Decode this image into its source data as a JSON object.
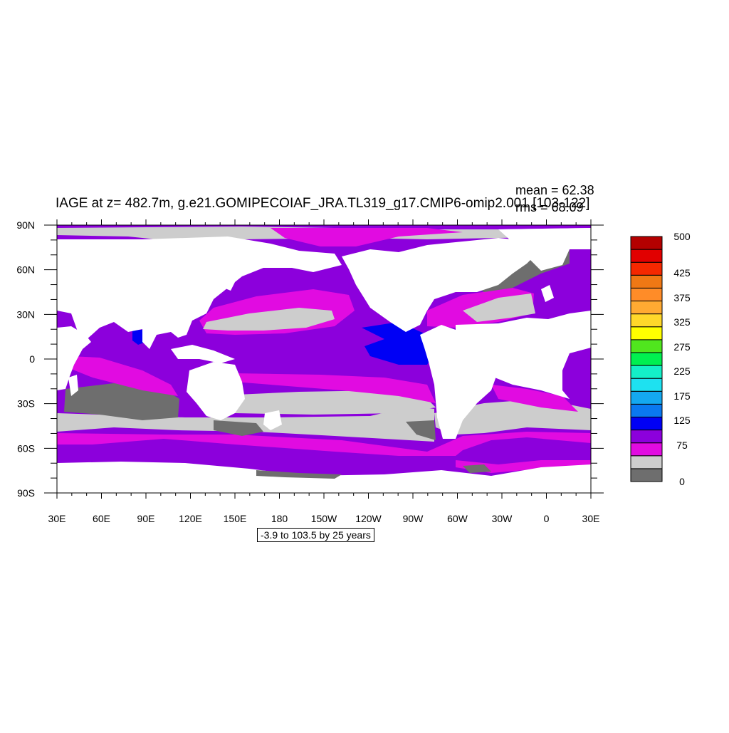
{
  "plot": {
    "title": "IAGE at z= 482.7m, g.e21.GOMIPECOIAF_JRA.TL319_g17.CMIP6-omip2.001 [103-122]",
    "mean_text": "mean = 62.38",
    "rms_text": "rms = 68.09",
    "contour_note": "-3.9 to 103.5 by 25 years",
    "lon_labels": [
      "30E",
      "60E",
      "90E",
      "120E",
      "150E",
      "180",
      "150W",
      "120W",
      "90W",
      "60W",
      "30W",
      "0",
      "30E"
    ],
    "lat_labels": [
      "90N",
      "60N",
      "30N",
      "0",
      "30S",
      "60S",
      "90S"
    ]
  },
  "colorbar": {
    "colors": [
      "#6e6e6e",
      "#cdcdcd",
      "#e10be1",
      "#8c00dc",
      "#0000f5",
      "#0a78f0",
      "#14a8f0",
      "#1ee1f0",
      "#14f0c8",
      "#00f050",
      "#50e61e",
      "#ffff00",
      "#ffd82a",
      "#ffaa32",
      "#ff8c28",
      "#f07814",
      "#f52800",
      "#e10000",
      "#b40000"
    ],
    "labels": [
      "0",
      "75",
      "125",
      "175",
      "225",
      "275",
      "325",
      "375",
      "425",
      "500"
    ]
  },
  "map_colors": {
    "land": "#ffffff",
    "le_0": "#6e6e6e",
    "to_25": "#cdcdcd",
    "to_50": "#e10be1",
    "to_75": "#8c00dc",
    "to_100": "#0000f5"
  }
}
